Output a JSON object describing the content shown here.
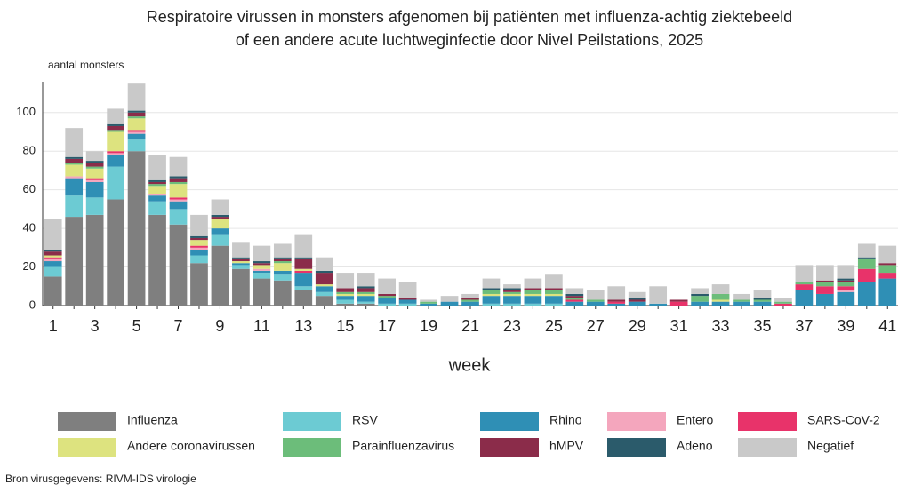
{
  "chart_data": {
    "type": "stacked_bar",
    "title": [
      "Respiratoire virussen in monsters afgenomen bij patiënten met influenza-achtig ziektebeeld",
      "of een andere acute luchtweginfectie door Nivel Peilstations, 2025"
    ],
    "y_label": "aantal monsters",
    "x_label": "week",
    "source": "Bron virusgegevens: RIVM-IDS virologie",
    "categories": [
      1,
      null,
      3,
      null,
      5,
      null,
      7,
      null,
      9,
      null,
      11,
      null,
      13,
      null,
      15,
      null,
      17,
      null,
      19,
      null,
      21,
      null,
      23,
      null,
      25,
      null,
      27,
      null,
      29,
      null,
      31,
      null,
      33,
      null,
      35,
      null,
      37,
      null,
      39,
      null,
      41
    ],
    "ylim": [
      0,
      116
    ],
    "yticks": [
      0,
      20,
      40,
      60,
      80,
      100
    ],
    "grid": true,
    "series": [
      {
        "name": "Influenza",
        "color": "#7f7f7f",
        "values": [
          15,
          46,
          47,
          55,
          80,
          47,
          42,
          22,
          31,
          19,
          14,
          13,
          8,
          5,
          1,
          1,
          0,
          0,
          0,
          0,
          0,
          0,
          0,
          0,
          0,
          0,
          0,
          0,
          0,
          0,
          0,
          0,
          0,
          0,
          0,
          0,
          0,
          0,
          0,
          0,
          0
        ]
      },
      {
        "name": "RSV",
        "color": "#6ccbd3",
        "values": [
          5,
          11,
          9,
          17,
          6,
          7,
          8,
          4,
          6,
          2,
          3,
          3,
          2,
          2,
          2,
          1,
          1,
          1,
          0,
          0,
          0,
          1,
          1,
          1,
          1,
          0,
          0,
          0,
          0,
          0,
          0,
          0,
          0,
          0,
          0,
          0,
          0,
          0,
          0,
          0,
          0
        ]
      },
      {
        "name": "Rhino",
        "color": "#2f8fb5",
        "values": [
          3,
          9,
          8,
          6,
          3,
          3,
          4,
          3,
          3,
          1,
          1,
          2,
          7,
          3,
          2,
          3,
          3,
          2,
          1,
          2,
          2,
          4,
          4,
          4,
          4,
          2,
          2,
          1,
          2,
          1,
          0,
          2,
          2,
          2,
          2,
          0,
          8,
          6,
          7,
          12,
          14
        ]
      },
      {
        "name": "Entero",
        "color": "#f4a6bd",
        "values": [
          1,
          1,
          1,
          1,
          1,
          1,
          1,
          1,
          0,
          0,
          1,
          0,
          0,
          0,
          0,
          0,
          0,
          0,
          0,
          0,
          0,
          0,
          0,
          0,
          0,
          0,
          0,
          0,
          0,
          0,
          0,
          0,
          0,
          0,
          0,
          0,
          0,
          0,
          1,
          0,
          0
        ]
      },
      {
        "name": "SARS-CoV-2",
        "color": "#e8336a",
        "values": [
          1,
          0,
          1,
          1,
          1,
          0,
          1,
          1,
          0,
          0,
          0,
          0,
          1,
          0,
          0,
          0,
          0,
          0,
          0,
          0,
          0,
          0,
          0,
          0,
          0,
          1,
          0,
          1,
          0,
          0,
          2,
          0,
          0,
          0,
          0,
          1,
          3,
          4,
          2,
          7,
          3
        ]
      },
      {
        "name": "Andere coronavirussen",
        "color": "#dde37f",
        "values": [
          1,
          6,
          5,
          10,
          6,
          4,
          7,
          3,
          5,
          1,
          2,
          4,
          1,
          1,
          1,
          1,
          0,
          0,
          0,
          0,
          0,
          1,
          1,
          1,
          1,
          0,
          0,
          0,
          0,
          0,
          0,
          0,
          1,
          0,
          0,
          0,
          0,
          0,
          0,
          0,
          0
        ]
      },
      {
        "name": "Parainfluenzavirus",
        "color": "#6cbd7a",
        "values": [
          0,
          1,
          1,
          1,
          1,
          1,
          1,
          0,
          0,
          0,
          0,
          1,
          0,
          0,
          1,
          1,
          1,
          0,
          1,
          0,
          1,
          2,
          1,
          2,
          2,
          1,
          1,
          0,
          0,
          0,
          0,
          3,
          3,
          1,
          1,
          1,
          1,
          2,
          2,
          5,
          4
        ]
      },
      {
        "name": "hMPV",
        "color": "#8b2c4a",
        "values": [
          2,
          2,
          2,
          2,
          2,
          1,
          2,
          1,
          1,
          1,
          1,
          1,
          5,
          6,
          2,
          2,
          1,
          1,
          0,
          0,
          1,
          0,
          1,
          1,
          1,
          1,
          0,
          1,
          1,
          0,
          1,
          0,
          0,
          0,
          0,
          0,
          0,
          1,
          1,
          0,
          1
        ]
      },
      {
        "name": "Adeno",
        "color": "#2b5b6b",
        "values": [
          1,
          1,
          1,
          1,
          1,
          1,
          1,
          1,
          1,
          1,
          1,
          1,
          1,
          1,
          0,
          1,
          0,
          0,
          0,
          0,
          0,
          1,
          1,
          0,
          0,
          1,
          0,
          0,
          1,
          0,
          0,
          1,
          0,
          0,
          1,
          0,
          0,
          0,
          1,
          1,
          0
        ]
      },
      {
        "name": "Negatief",
        "color": "#c9c9c9",
        "values": [
          16,
          15,
          5,
          8,
          14,
          13,
          10,
          11,
          8,
          8,
          8,
          7,
          12,
          7,
          8,
          7,
          8,
          8,
          1,
          3,
          2,
          5,
          2,
          5,
          7,
          3,
          5,
          7,
          3,
          9,
          0,
          3,
          5,
          3,
          4,
          2,
          9,
          8,
          7,
          7,
          9
        ]
      }
    ]
  }
}
